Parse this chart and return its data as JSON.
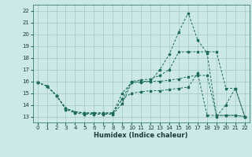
{
  "xlabel": "Humidex (Indice chaleur)",
  "background_color": "#cce8e8",
  "grid_color": "#aacccc",
  "line_color": "#1a6b5a",
  "xlim": [
    -0.5,
    22.5
  ],
  "ylim": [
    12.5,
    22.5
  ],
  "yticks": [
    13,
    14,
    15,
    16,
    17,
    18,
    19,
    20,
    21,
    22
  ],
  "xticks": [
    0,
    1,
    2,
    3,
    4,
    5,
    6,
    7,
    8,
    9,
    10,
    11,
    12,
    13,
    14,
    15,
    16,
    17,
    18,
    19,
    20,
    21,
    22
  ],
  "series": [
    {
      "x": [
        0,
        1,
        2,
        3,
        4,
        5,
        6,
        7,
        8,
        9,
        10,
        11,
        12,
        13,
        14,
        15,
        16,
        17,
        18,
        19,
        20,
        21,
        22
      ],
      "y": [
        15.9,
        15.6,
        14.8,
        13.6,
        13.3,
        13.2,
        13.2,
        13.2,
        13.2,
        14.1,
        15.9,
        16.0,
        16.0,
        17.0,
        18.3,
        20.2,
        21.8,
        19.5,
        18.4,
        13.0,
        14.0,
        15.4,
        13.0
      ]
    },
    {
      "x": [
        0,
        1,
        2,
        3,
        4,
        5,
        6,
        7,
        8,
        9,
        10,
        11,
        12,
        13,
        14,
        15,
        16,
        17,
        18,
        19,
        20,
        21,
        22
      ],
      "y": [
        15.9,
        15.6,
        14.8,
        13.7,
        13.4,
        13.3,
        13.3,
        13.3,
        13.3,
        14.5,
        16.0,
        16.1,
        16.2,
        16.5,
        17.0,
        18.5,
        18.5,
        18.5,
        18.5,
        18.5,
        15.4,
        15.4,
        13.0
      ]
    },
    {
      "x": [
        0,
        1,
        2,
        3,
        4,
        5,
        6,
        7,
        8,
        9,
        10,
        11,
        12,
        13,
        14,
        15,
        16,
        17,
        18,
        19,
        20,
        21,
        22
      ],
      "y": [
        15.9,
        15.6,
        14.8,
        13.7,
        13.4,
        13.3,
        13.3,
        13.3,
        13.3,
        15.0,
        15.9,
        15.9,
        16.0,
        16.0,
        16.1,
        16.2,
        16.4,
        16.5,
        16.5,
        13.1,
        13.1,
        13.1,
        13.0
      ]
    },
    {
      "x": [
        0,
        1,
        2,
        3,
        4,
        5,
        6,
        7,
        8,
        9,
        10,
        11,
        12,
        13,
        14,
        15,
        16,
        17,
        18,
        19,
        20,
        21,
        22
      ],
      "y": [
        15.9,
        15.6,
        14.8,
        13.7,
        13.4,
        13.3,
        13.3,
        13.3,
        13.3,
        14.5,
        15.0,
        15.1,
        15.2,
        15.2,
        15.3,
        15.4,
        15.5,
        16.7,
        13.1,
        13.1,
        13.1,
        13.1,
        13.0
      ]
    }
  ]
}
